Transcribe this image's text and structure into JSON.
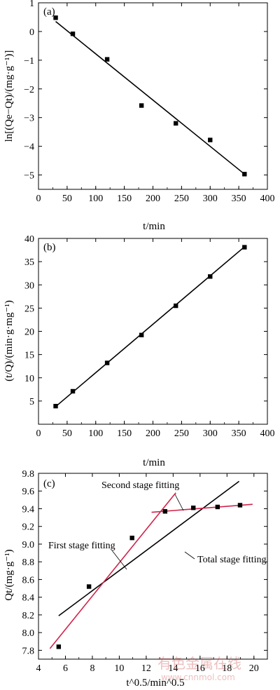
{
  "watermark": {
    "line1": "有色金属在线",
    "line2": "www.cnnmol.com"
  },
  "colors": {
    "axis": "#000000",
    "fit": "#000000",
    "stage_fit": "#d0234a",
    "marker": "#000000"
  },
  "chart_data": [
    {
      "panel": "(a)",
      "type": "scatter",
      "xlabel": "t/min",
      "ylabel": "ln[(Qe−Qt)/(mg·g⁻¹)]",
      "xlim": [
        0,
        400
      ],
      "ylim": [
        -5.5,
        1
      ],
      "xticks": [
        0,
        50,
        100,
        150,
        200,
        250,
        300,
        350,
        400
      ],
      "yticks": [
        -5,
        -4,
        -3,
        -2,
        -1,
        0,
        1
      ],
      "ytick_labels": [
        "−5",
        "−4",
        "−3",
        "−2",
        "−1",
        "0",
        "1"
      ],
      "series": [
        {
          "x": [
            30,
            60,
            120,
            180,
            240,
            300,
            360
          ],
          "y": [
            0.48,
            -0.08,
            -0.97,
            -2.58,
            -3.2,
            -3.78,
            -4.97
          ]
        }
      ],
      "fit_lines": [
        {
          "x": [
            30,
            360
          ],
          "y": [
            0.35,
            -4.97
          ],
          "color": "#000000"
        }
      ],
      "grid": false
    },
    {
      "panel": "(b)",
      "type": "scatter",
      "xlabel": "t/min",
      "ylabel": "(t/Q)/(min·g·mg⁻¹)",
      "xlim": [
        0,
        400
      ],
      "ylim": [
        0,
        40
      ],
      "xticks": [
        0,
        50,
        100,
        150,
        200,
        250,
        300,
        350,
        400
      ],
      "yticks": [
        5,
        10,
        15,
        20,
        25,
        30,
        35,
        40
      ],
      "ytick_labels": [
        "5",
        "10",
        "15",
        "20",
        "25",
        "30",
        "35",
        "40"
      ],
      "series": [
        {
          "x": [
            30,
            60,
            120,
            180,
            240,
            300,
            360
          ],
          "y": [
            3.9,
            7.1,
            13.2,
            19.2,
            25.5,
            31.8,
            38.1
          ]
        }
      ],
      "fit_lines": [
        {
          "x": [
            30,
            360
          ],
          "y": [
            3.8,
            38.2
          ],
          "color": "#000000"
        }
      ],
      "grid": false
    },
    {
      "panel": "(c)",
      "type": "scatter",
      "xlabel": "t^0.5/min^0.5",
      "ylabel": "Qt/(mg·g⁻¹)",
      "xlim": [
        4,
        21
      ],
      "ylim": [
        7.7,
        9.8
      ],
      "xticks": [
        4,
        6,
        8,
        10,
        12,
        14,
        16,
        18,
        20
      ],
      "yticks": [
        7.8,
        8.0,
        8.2,
        8.4,
        8.6,
        8.8,
        9.0,
        9.2,
        9.4,
        9.6,
        9.8
      ],
      "ytick_labels": [
        "7.8",
        "8.0",
        "8.2",
        "8.4",
        "8.6",
        "8.8",
        "9.0",
        "9.2",
        "9.4",
        "9.6",
        "9.8"
      ],
      "series": [
        {
          "x": [
            5.5,
            7.75,
            10.95,
            13.4,
            15.5,
            17.3,
            18.97
          ],
          "y": [
            7.84,
            8.52,
            9.07,
            9.37,
            9.41,
            9.42,
            9.44
          ]
        }
      ],
      "fit_lines": [
        {
          "name": "Total stage fitting",
          "x": [
            5.5,
            18.9
          ],
          "y": [
            8.19,
            9.71
          ],
          "color": "#000000"
        },
        {
          "name": "First stage fitting",
          "x": [
            4.85,
            14.2
          ],
          "y": [
            7.82,
            9.58
          ],
          "color": "#d0234a"
        },
        {
          "name": "Second stage fitting",
          "x": [
            12.4,
            19.9
          ],
          "y": [
            9.36,
            9.45
          ],
          "color": "#d0234a"
        }
      ],
      "annotations": [
        "Second stage fitting",
        "First stage fitting",
        "Total stage fitting"
      ],
      "grid": false
    }
  ]
}
